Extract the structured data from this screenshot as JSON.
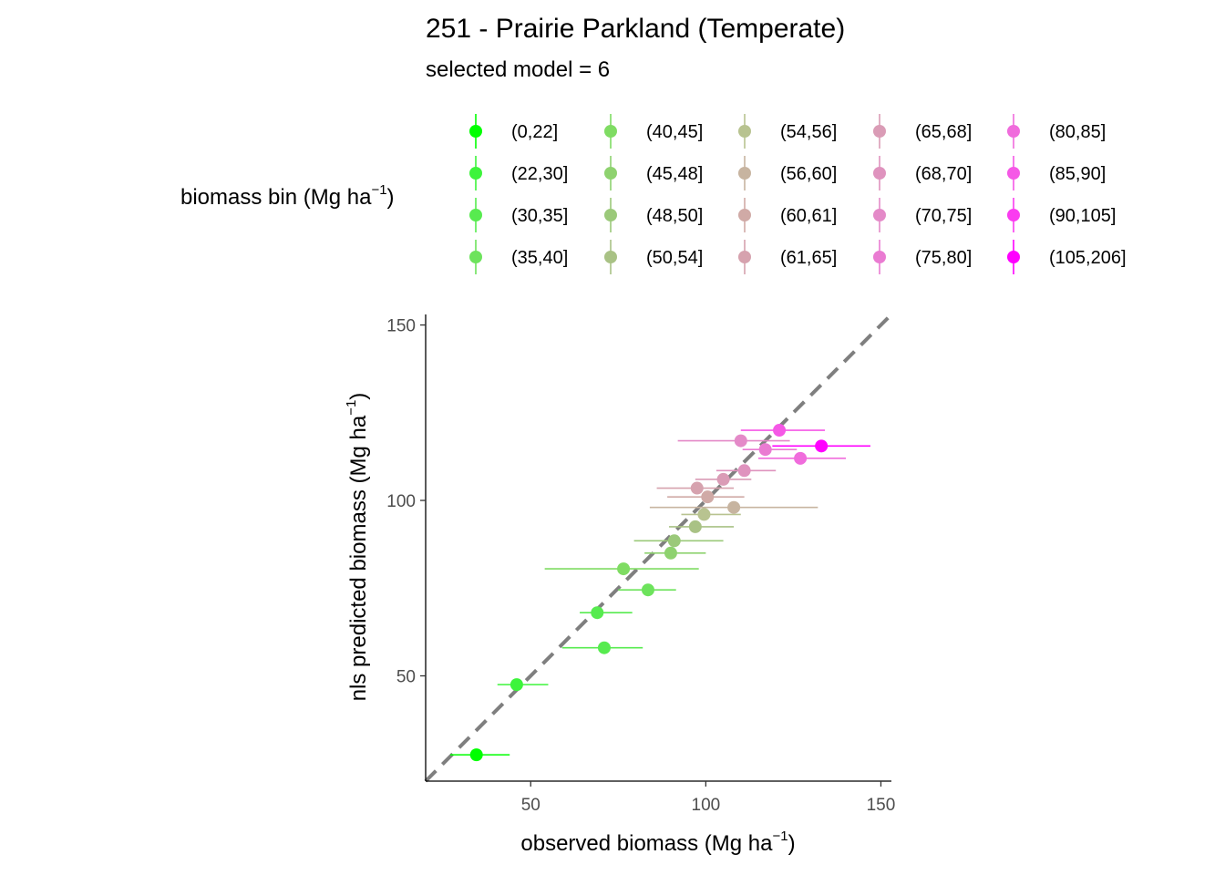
{
  "chart_data": {
    "type": "scatter",
    "title": "251 - Prairie Parkland (Temperate)",
    "subtitle": "selected model = 6",
    "xlabel": "observed biomass (Mg ha",
    "ylabel": "nls predicted biomass (Mg ha",
    "unit_exponent": "−1",
    "unit_close": ")",
    "xlim": [
      20,
      153
    ],
    "ylim": [
      20,
      153
    ],
    "x_ticks": [
      50,
      100,
      150
    ],
    "y_ticks": [
      50,
      100,
      150
    ],
    "reference_line": "1:1 dashed",
    "grid": false,
    "legend": {
      "title": "biomass bin (Mg ha",
      "placement": "top",
      "columns": 5,
      "entries": [
        {
          "label": "(0,22]",
          "color": "#00FF00"
        },
        {
          "label": "(22,30]",
          "color": "#3DF43B"
        },
        {
          "label": "(30,35]",
          "color": "#57EB4F"
        },
        {
          "label": "(35,40]",
          "color": "#6DE35C"
        },
        {
          "label": "(40,45]",
          "color": "#7FDC63"
        },
        {
          "label": "(45,48]",
          "color": "#8ED26F"
        },
        {
          "label": "(48,50]",
          "color": "#9BC97A"
        },
        {
          "label": "(50,54]",
          "color": "#A9C285"
        },
        {
          "label": "(54,56]",
          "color": "#B8C390"
        },
        {
          "label": "(56,60]",
          "color": "#C7B4A0"
        },
        {
          "label": "(60,61]",
          "color": "#D0AAA6"
        },
        {
          "label": "(61,65]",
          "color": "#D6A2AE"
        },
        {
          "label": "(65,68]",
          "color": "#DA9CB6"
        },
        {
          "label": "(68,70]",
          "color": "#DF93BE"
        },
        {
          "label": "(70,75]",
          "color": "#E48AC8"
        },
        {
          "label": "(75,80]",
          "color": "#EA7BD2"
        },
        {
          "label": "(80,85]",
          "color": "#F06CDC"
        },
        {
          "label": "(85,90]",
          "color": "#F558E6"
        },
        {
          "label": "(90,105]",
          "color": "#FA3CF0"
        },
        {
          "label": "(105,206]",
          "color": "#FF00FF"
        }
      ]
    },
    "points": [
      {
        "x": 34.5,
        "y": 27.5,
        "xmin": 27,
        "xmax": 44,
        "bin": 0
      },
      {
        "x": 46,
        "y": 47.5,
        "xmin": 40.5,
        "xmax": 55,
        "bin": 1
      },
      {
        "x": 71,
        "y": 58,
        "xmin": 59,
        "xmax": 82,
        "bin": 2
      },
      {
        "x": 69,
        "y": 68,
        "xmin": 64,
        "xmax": 79,
        "bin": 2
      },
      {
        "x": 83.5,
        "y": 74.5,
        "xmin": 75,
        "xmax": 91.5,
        "bin": 3
      },
      {
        "x": 76.5,
        "y": 80.5,
        "xmin": 54,
        "xmax": 98,
        "bin": 4
      },
      {
        "x": 90,
        "y": 85,
        "xmin": 82.5,
        "xmax": 100,
        "bin": 5
      },
      {
        "x": 91,
        "y": 88.5,
        "xmin": 79.5,
        "xmax": 105,
        "bin": 6
      },
      {
        "x": 97,
        "y": 92.5,
        "xmin": 89.5,
        "xmax": 108,
        "bin": 7
      },
      {
        "x": 99.5,
        "y": 96,
        "xmin": 93,
        "xmax": 110,
        "bin": 8
      },
      {
        "x": 108,
        "y": 98,
        "xmin": 84,
        "xmax": 132,
        "bin": 9
      },
      {
        "x": 100.5,
        "y": 101,
        "xmin": 89,
        "xmax": 111,
        "bin": 10
      },
      {
        "x": 97.5,
        "y": 103.5,
        "xmin": 86,
        "xmax": 108,
        "bin": 11
      },
      {
        "x": 105,
        "y": 106,
        "xmin": 97,
        "xmax": 113,
        "bin": 12
      },
      {
        "x": 111,
        "y": 108.5,
        "xmin": 103,
        "xmax": 120,
        "bin": 13
      },
      {
        "x": 110,
        "y": 117,
        "xmin": 92,
        "xmax": 124,
        "bin": 14
      },
      {
        "x": 117,
        "y": 114.5,
        "xmin": 110.5,
        "xmax": 126,
        "bin": 15
      },
      {
        "x": 127,
        "y": 112,
        "xmin": 115,
        "xmax": 140,
        "bin": 16
      },
      {
        "x": 121,
        "y": 120,
        "xmin": 110,
        "xmax": 134,
        "bin": 17
      },
      {
        "x": 133,
        "y": 115.5,
        "xmin": 119,
        "xmax": 147,
        "bin": 19
      }
    ]
  }
}
